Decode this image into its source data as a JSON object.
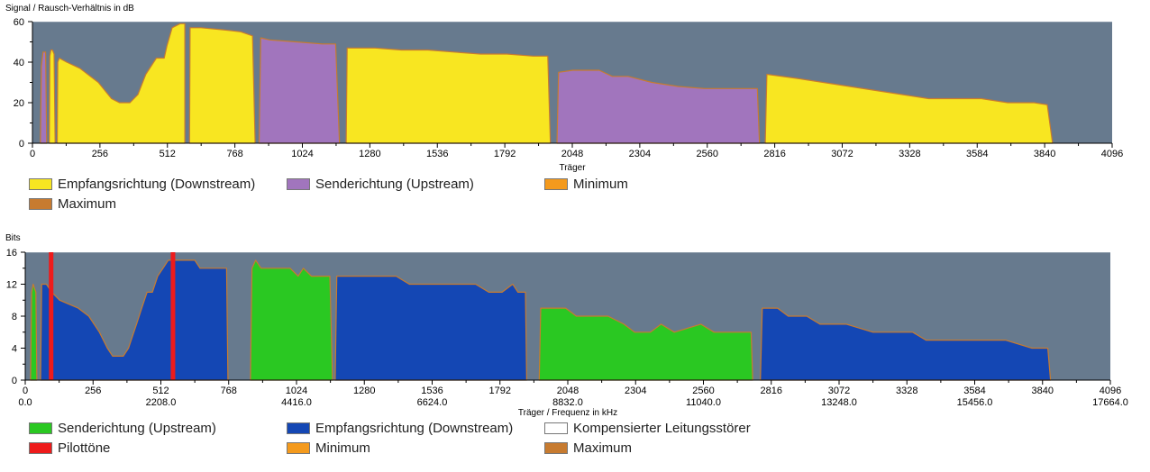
{
  "chart_data": [
    {
      "type": "area",
      "title": "Signal / Rausch-Verhältnis in dB",
      "xlabel": "Träger",
      "ylabel": "Signal / Rausch-Verhältnis in dB",
      "xlim": [
        0,
        4096
      ],
      "ylim": [
        0,
        60
      ],
      "xticks": [
        0,
        256,
        512,
        768,
        1024,
        1280,
        1536,
        1792,
        2048,
        2304,
        2560,
        2816,
        3072,
        3328,
        3584,
        3840,
        4096
      ],
      "yticks": [
        0,
        20,
        40,
        60
      ],
      "grid": false,
      "legend_position": "bottom",
      "colors": {
        "plot_bg": "#677a8e",
        "downstream": "#f8e621",
        "upstream": "#a175bd",
        "minimum": "#f49a1d",
        "maximum": "#c77b30"
      },
      "series": [
        {
          "name": "Empfangsrichtung (Downstream)",
          "color": "#f8e621",
          "segments": [
            [
              [
                64,
                0
              ],
              [
                66,
                43
              ],
              [
                70,
                46
              ],
              [
                76,
                46
              ],
              [
                82,
                44
              ],
              [
                86,
                0
              ]
            ],
            [
              [
                94,
                0
              ],
              [
                96,
                40
              ],
              [
                102,
                42
              ],
              [
                130,
                40
              ],
              [
                180,
                37
              ],
              [
                250,
                30
              ],
              [
                300,
                22
              ],
              [
                330,
                20
              ],
              [
                370,
                20
              ],
              [
                400,
                24
              ],
              [
                430,
                34
              ],
              [
                470,
                42
              ],
              [
                500,
                42
              ],
              [
                510,
                48
              ],
              [
                530,
                57
              ],
              [
                560,
                59
              ],
              [
                578,
                59
              ],
              [
                578,
                0
              ]
            ],
            [
              [
                596,
                0
              ],
              [
                598,
                57
              ],
              [
                640,
                57
              ],
              [
                720,
                56
              ],
              [
                790,
                55
              ],
              [
                835,
                53
              ],
              [
                845,
                0
              ]
            ],
            [
              [
                1190,
                0
              ],
              [
                1194,
                47
              ],
              [
                1300,
                47
              ],
              [
                1400,
                46
              ],
              [
                1500,
                46
              ],
              [
                1600,
                45
              ],
              [
                1700,
                44
              ],
              [
                1800,
                44
              ],
              [
                1900,
                43
              ],
              [
                1955,
                43
              ],
              [
                1965,
                0
              ]
            ],
            [
              [
                2780,
                0
              ],
              [
                2786,
                34
              ],
              [
                2900,
                32
              ],
              [
                3000,
                30
              ],
              [
                3100,
                28
              ],
              [
                3200,
                26
              ],
              [
                3300,
                24
              ],
              [
                3400,
                22
              ],
              [
                3500,
                22
              ],
              [
                3600,
                22
              ],
              [
                3700,
                20
              ],
              [
                3800,
                20
              ],
              [
                3850,
                19
              ],
              [
                3870,
                0
              ]
            ]
          ]
        },
        {
          "name": "Senderichtung (Upstream)",
          "color": "#a175bd",
          "segments": [
            [
              [
                30,
                0
              ],
              [
                34,
                38
              ],
              [
                40,
                45
              ],
              [
                50,
                45
              ],
              [
                54,
                0
              ]
            ],
            [
              [
                860,
                0
              ],
              [
                866,
                52
              ],
              [
                900,
                51
              ],
              [
                1000,
                50
              ],
              [
                1100,
                49
              ],
              [
                1150,
                49
              ],
              [
                1165,
                0
              ]
            ],
            [
              [
                1990,
                0
              ],
              [
                1996,
                35
              ],
              [
                2050,
                36
              ],
              [
                2150,
                36
              ],
              [
                2200,
                33
              ],
              [
                2260,
                33
              ],
              [
                2350,
                30
              ],
              [
                2450,
                28
              ],
              [
                2550,
                27
              ],
              [
                2650,
                27
              ],
              [
                2750,
                27
              ],
              [
                2758,
                0
              ]
            ]
          ]
        }
      ]
    },
    {
      "type": "area",
      "title": "Bits",
      "xlabel": "Träger / Frequenz in kHz",
      "ylabel": "Bits",
      "xlim": [
        0,
        4096
      ],
      "ylim": [
        0,
        16
      ],
      "xticks": [
        0,
        256,
        512,
        768,
        1024,
        1280,
        1536,
        1792,
        2048,
        2304,
        2560,
        2816,
        3072,
        3328,
        3584,
        3840,
        4096
      ],
      "xticks_khz": [
        "0.0",
        "2208.0",
        "4416.0",
        "6624.0",
        "8832.0",
        "11040.0",
        "13248.0",
        "15456.0",
        "17664.0"
      ],
      "yticks": [
        0,
        4,
        8,
        12,
        16
      ],
      "grid": false,
      "legend_position": "bottom",
      "colors": {
        "plot_bg": "#677a8e",
        "upstream": "#2ac822",
        "downstream": "#1447b4",
        "compensated": "#ffffff",
        "pilot": "#ee1b1b",
        "minimum": "#f49a1d",
        "maximum": "#c77b30"
      },
      "pilot_tones": [
        96,
        556
      ],
      "series": [
        {
          "name": "Senderichtung (Upstream)",
          "color": "#2ac822",
          "segments": [
            [
              [
                20,
                0
              ],
              [
                24,
                11
              ],
              [
                30,
                12
              ],
              [
                40,
                11
              ],
              [
                44,
                0
              ]
            ],
            [
              [
                850,
                0
              ],
              [
                856,
                14
              ],
              [
                870,
                15
              ],
              [
                890,
                14
              ],
              [
                1000,
                14
              ],
              [
                1030,
                13
              ],
              [
                1050,
                14
              ],
              [
                1080,
                13
              ],
              [
                1150,
                13
              ],
              [
                1160,
                0
              ]
            ],
            [
              [
                1940,
                0
              ],
              [
                1946,
                9
              ],
              [
                2000,
                9
              ],
              [
                2040,
                9
              ],
              [
                2080,
                8
              ],
              [
                2200,
                8
              ],
              [
                2260,
                7
              ],
              [
                2300,
                6
              ],
              [
                2360,
                6
              ],
              [
                2400,
                7
              ],
              [
                2450,
                6
              ],
              [
                2550,
                7
              ],
              [
                2600,
                6
              ],
              [
                2700,
                6
              ],
              [
                2740,
                6
              ],
              [
                2746,
                0
              ]
            ]
          ]
        },
        {
          "name": "Empfangsrichtung (Downstream)",
          "color": "#1447b4",
          "segments": [
            [
              [
                58,
                0
              ],
              [
                62,
                12
              ],
              [
                80,
                12
              ],
              [
                100,
                11
              ],
              [
                130,
                10
              ],
              [
                200,
                9
              ],
              [
                240,
                8
              ],
              [
                280,
                6
              ],
              [
                310,
                4
              ],
              [
                330,
                3
              ],
              [
                370,
                3
              ],
              [
                390,
                4
              ],
              [
                420,
                7
              ],
              [
                440,
                9
              ],
              [
                460,
                11
              ],
              [
                480,
                11
              ],
              [
                500,
                13
              ],
              [
                520,
                14
              ],
              [
                540,
                15
              ],
              [
                600,
                15
              ],
              [
                640,
                15
              ],
              [
                660,
                14
              ],
              [
                720,
                14
              ],
              [
                760,
                14
              ],
              [
                765,
                0
              ]
            ],
            [
              [
                1170,
                0
              ],
              [
                1176,
                13
              ],
              [
                1300,
                13
              ],
              [
                1400,
                13
              ],
              [
                1450,
                12
              ],
              [
                1600,
                12
              ],
              [
                1700,
                12
              ],
              [
                1750,
                11
              ],
              [
                1800,
                11
              ],
              [
                1840,
                12
              ],
              [
                1860,
                11
              ],
              [
                1888,
                11
              ],
              [
                1893,
                0
              ]
            ],
            [
              [
                2775,
                0
              ],
              [
                2782,
                9
              ],
              [
                2840,
                9
              ],
              [
                2880,
                8
              ],
              [
                2950,
                8
              ],
              [
                3000,
                7
              ],
              [
                3100,
                7
              ],
              [
                3200,
                6
              ],
              [
                3350,
                6
              ],
              [
                3400,
                5
              ],
              [
                3500,
                5
              ],
              [
                3700,
                5
              ],
              [
                3800,
                4
              ],
              [
                3860,
                4
              ],
              [
                3870,
                0
              ]
            ]
          ]
        },
        {
          "name": "Kompensierter Leitungsstörer",
          "color": "#ffffff",
          "segments": []
        }
      ]
    }
  ],
  "legend1": [
    {
      "label": "Empfangsrichtung (Downstream)",
      "color": "#f8e621"
    },
    {
      "label": "Senderichtung (Upstream)",
      "color": "#a175bd"
    },
    {
      "label": "Minimum",
      "color": "#f49a1d"
    },
    {
      "label": "Maximum",
      "color": "#c77b30"
    }
  ],
  "legend2": [
    {
      "label": "Senderichtung (Upstream)",
      "color": "#2ac822"
    },
    {
      "label": "Empfangsrichtung (Downstream)",
      "color": "#1447b4"
    },
    {
      "label": "Kompensierter Leitungsstörer",
      "color": "#ffffff"
    },
    {
      "label": "Pilottöne",
      "color": "#ee1b1b"
    },
    {
      "label": "Minimum",
      "color": "#f49a1d"
    },
    {
      "label": "Maximum",
      "color": "#c77b30"
    }
  ]
}
